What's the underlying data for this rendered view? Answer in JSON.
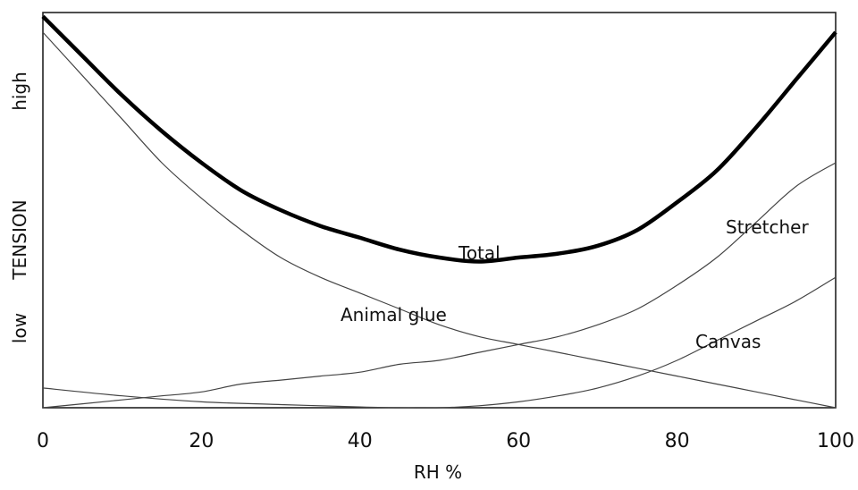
{
  "chart_data": {
    "type": "line",
    "xlabel": "RH %",
    "ylabel": "TENSION",
    "y_end_labels": {
      "low": "low",
      "high": "high"
    },
    "xlim": [
      0,
      100
    ],
    "ylim": [
      0,
      1
    ],
    "y_units": "relative tension (unlabeled scale)",
    "xticks": [
      0,
      20,
      40,
      60,
      80,
      100
    ],
    "grid": false,
    "legend": "none (series labeled directly on plot)",
    "series": [
      {
        "name": "Total",
        "emphasis": "bold",
        "x": [
          0,
          5,
          10,
          15,
          20,
          25,
          30,
          35,
          40,
          45,
          50,
          55,
          60,
          65,
          70,
          75,
          80,
          85,
          90,
          95,
          100
        ],
        "y": [
          0.99,
          0.89,
          0.79,
          0.7,
          0.62,
          0.55,
          0.5,
          0.46,
          0.43,
          0.4,
          0.38,
          0.37,
          0.38,
          0.39,
          0.41,
          0.45,
          0.52,
          0.6,
          0.71,
          0.83,
          0.95
        ]
      },
      {
        "name": "Animal glue",
        "x": [
          0,
          5,
          10,
          15,
          20,
          25,
          30,
          35,
          40,
          45,
          50,
          55,
          60,
          65,
          70,
          75,
          80,
          85,
          90,
          95,
          100
        ],
        "y": [
          0.95,
          0.84,
          0.73,
          0.62,
          0.53,
          0.45,
          0.38,
          0.33,
          0.29,
          0.25,
          0.21,
          0.18,
          0.16,
          0.14,
          0.12,
          0.1,
          0.08,
          0.06,
          0.04,
          0.02,
          0.0
        ]
      },
      {
        "name": "Stretcher",
        "x": [
          0,
          5,
          10,
          15,
          20,
          25,
          30,
          35,
          40,
          45,
          50,
          55,
          60,
          65,
          70,
          75,
          80,
          85,
          90,
          95,
          100
        ],
        "y": [
          0.0,
          0.01,
          0.02,
          0.03,
          0.04,
          0.06,
          0.07,
          0.08,
          0.09,
          0.11,
          0.12,
          0.14,
          0.16,
          0.18,
          0.21,
          0.25,
          0.31,
          0.38,
          0.47,
          0.56,
          0.62
        ]
      },
      {
        "name": "Canvas",
        "x": [
          0,
          10,
          20,
          30,
          40,
          45,
          50,
          55,
          60,
          65,
          70,
          75,
          80,
          85,
          90,
          95,
          100
        ],
        "y": [
          0.05,
          0.03,
          0.015,
          0.008,
          0.002,
          0.0,
          0.0,
          0.005,
          0.015,
          0.03,
          0.05,
          0.08,
          0.12,
          0.17,
          0.22,
          0.27,
          0.33
        ]
      }
    ]
  }
}
